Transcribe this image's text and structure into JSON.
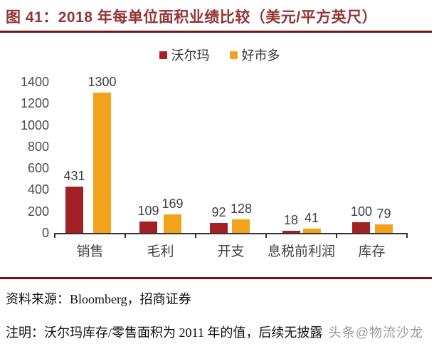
{
  "header": {
    "title": "图 41：2018 年每单位面积业绩比较（美元/平方英尺）"
  },
  "chart_data": {
    "type": "bar",
    "title": "2018 年每单位面积业绩比较（美元/平方英尺）",
    "unit": "美元/平方英尺",
    "categories": [
      "销售",
      "毛利",
      "开支",
      "息税前利润",
      "库存"
    ],
    "series": [
      {
        "name": "沃尔玛",
        "color": "#A32125",
        "values": [
          431,
          109,
          92,
          18,
          100
        ]
      },
      {
        "name": "好市多",
        "color": "#F2A31C",
        "values": [
          1300,
          169,
          128,
          41,
          79
        ]
      }
    ],
    "ylim": [
      0,
      1400
    ],
    "yticks": [
      0,
      200,
      400,
      600,
      800,
      1000,
      1200,
      1400
    ],
    "grid": false,
    "legend_position": "top"
  },
  "footer": {
    "source": "资料来源：Bloomberg，招商证券",
    "note": "注明：沃尔玛库存/零售面积为 2011 年的值，后续无披露",
    "watermark": "头条@物流沙龙"
  },
  "colors": {
    "title_text": "#943437",
    "rule": "#7A1316",
    "bar_walmart": "#A32125",
    "bar_costco": "#F2A31C",
    "axis_text": "#4D4D4D",
    "value_text": "#3F3F3F",
    "watermark_text": "#8F8F8F"
  }
}
